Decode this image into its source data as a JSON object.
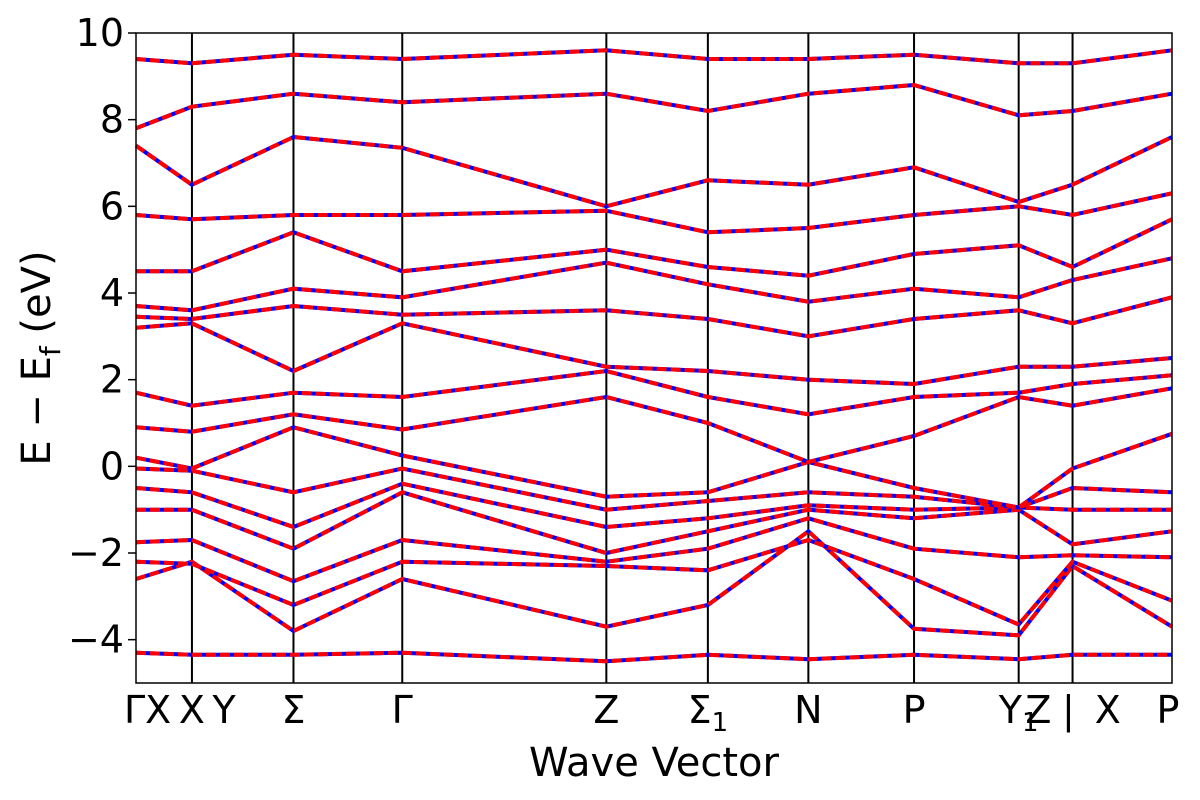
{
  "chart_data": {
    "type": "line",
    "title": "",
    "xlabel": "Wave Vector",
    "ylabel_parts": {
      "main": "E  −  E",
      "sub": "f",
      "unit": " (eV)"
    },
    "ylim": [
      -5,
      10
    ],
    "yticks": [
      {
        "value": -4,
        "label": "−4"
      },
      {
        "value": -2,
        "label": "−2"
      },
      {
        "value": 0,
        "label": "0"
      },
      {
        "value": 2,
        "label": "2"
      },
      {
        "value": 4,
        "label": "4"
      },
      {
        "value": 6,
        "label": "6"
      },
      {
        "value": 8,
        "label": "8"
      },
      {
        "value": 10,
        "label": "10"
      }
    ],
    "xlim": [
      0,
      1
    ],
    "high_symmetry_points": [
      {
        "x": 0.0,
        "label": "ΓX"
      },
      {
        "x": 0.054,
        "label": "X"
      },
      {
        "x": 0.085,
        "label": "Y"
      },
      {
        "x": 0.152,
        "label": "Σ"
      },
      {
        "x": 0.257,
        "label": "Γ"
      },
      {
        "x": 0.454,
        "label": "Z"
      },
      {
        "x": 0.552,
        "label": "Σ",
        "subscript": "1"
      },
      {
        "x": 0.649,
        "label": "N"
      },
      {
        "x": 0.751,
        "label": "P"
      },
      {
        "x": 0.852,
        "label": "Y",
        "subscript": "1"
      },
      {
        "x": 0.871,
        "label": "Z"
      },
      {
        "x": 0.9,
        "label": "|"
      },
      {
        "x": 0.938,
        "label": "X"
      },
      {
        "x": 1.0,
        "label": "P"
      }
    ],
    "segment_boundaries": [
      0.054,
      0.152,
      0.257,
      0.454,
      0.552,
      0.649,
      0.751,
      0.852,
      0.904
    ],
    "colors": {
      "dft": "#0000ff",
      "wannier": "#ff0000",
      "axes": "#000000"
    },
    "series": [
      {
        "name": "",
        "color": "#0000ff",
        "bands": [
          {
            "x": [
              0,
              0.054,
              0.152,
              0.257,
              0.454,
              0.552,
              0.649,
              0.751,
              0.852,
              0.904,
              1.0
            ],
            "y": [
              -4.3,
              -4.35,
              -4.35,
              -4.3,
              -4.5,
              -4.35,
              -4.45,
              -4.35,
              -4.45,
              -4.35,
              -4.35
            ]
          },
          {
            "x": [
              0,
              0.054,
              0.152,
              0.257,
              0.454,
              0.552,
              0.649,
              0.751,
              0.852,
              0.904,
              1.0
            ],
            "y": [
              -2.6,
              -2.2,
              -3.8,
              -2.6,
              -3.7,
              -3.2,
              -1.5,
              -3.75,
              -3.9,
              -2.3,
              -3.7
            ]
          },
          {
            "x": [
              0,
              0.054,
              0.152,
              0.257,
              0.454,
              0.552,
              0.649,
              0.751,
              0.852,
              0.904,
              1.0
            ],
            "y": [
              -2.2,
              -2.25,
              -3.2,
              -2.2,
              -2.3,
              -2.4,
              -1.7,
              -2.6,
              -3.65,
              -2.2,
              -3.1
            ]
          },
          {
            "x": [
              0,
              0.054,
              0.152,
              0.257,
              0.454,
              0.552,
              0.649,
              0.751,
              0.852,
              0.904,
              1.0
            ],
            "y": [
              -1.75,
              -1.7,
              -2.65,
              -1.7,
              -2.2,
              -1.9,
              -1.2,
              -1.9,
              -2.1,
              -2.05,
              -2.1
            ]
          },
          {
            "x": [
              0,
              0.054,
              0.152,
              0.257,
              0.454,
              0.552,
              0.649,
              0.751,
              0.852,
              0.904,
              1.0
            ],
            "y": [
              -1.0,
              -1.0,
              -1.9,
              -0.6,
              -2.0,
              -1.5,
              -1.0,
              -1.2,
              -1.0,
              -1.8,
              -1.5
            ]
          },
          {
            "x": [
              0,
              0.054,
              0.152,
              0.257,
              0.454,
              0.552,
              0.649,
              0.751,
              0.852,
              0.904,
              1.0
            ],
            "y": [
              -0.5,
              -0.6,
              -1.4,
              -0.4,
              -1.4,
              -1.2,
              -0.9,
              -1.0,
              -0.95,
              -1.0,
              -1.0
            ]
          },
          {
            "x": [
              0,
              0.054,
              0.152,
              0.257,
              0.454,
              0.552,
              0.649,
              0.751,
              0.852,
              0.904,
              1.0
            ],
            "y": [
              -0.05,
              -0.1,
              -0.6,
              -0.05,
              -1.0,
              -0.8,
              -0.6,
              -0.7,
              -0.95,
              -0.5,
              -0.6
            ]
          },
          {
            "x": [
              0,
              0.054,
              0.152,
              0.257,
              0.454,
              0.552,
              0.649,
              0.751,
              0.852,
              0.904,
              1.0
            ],
            "y": [
              0.2,
              -0.05,
              0.9,
              0.25,
              -0.7,
              -0.6,
              0.1,
              -0.5,
              -0.95,
              -0.05,
              0.75
            ]
          },
          {
            "x": [
              0,
              0.054,
              0.152,
              0.257,
              0.454,
              0.552,
              0.649,
              0.751,
              0.852,
              0.904,
              1.0
            ],
            "y": [
              0.9,
              0.8,
              1.2,
              0.85,
              1.6,
              1.0,
              0.1,
              0.7,
              1.6,
              1.4,
              1.8
            ]
          },
          {
            "x": [
              0,
              0.054,
              0.152,
              0.257,
              0.454,
              0.552,
              0.649,
              0.751,
              0.852,
              0.904,
              1.0
            ],
            "y": [
              1.7,
              1.4,
              1.7,
              1.6,
              2.2,
              1.6,
              1.2,
              1.6,
              1.7,
              1.9,
              2.1
            ]
          },
          {
            "x": [
              0,
              0.054,
              0.152,
              0.257,
              0.454,
              0.552,
              0.649,
              0.751,
              0.852,
              0.904,
              1.0
            ],
            "y": [
              3.2,
              3.3,
              2.2,
              3.3,
              2.3,
              2.2,
              2.0,
              1.9,
              2.3,
              2.3,
              2.5
            ]
          },
          {
            "x": [
              0,
              0.054,
              0.152,
              0.257,
              0.454,
              0.552,
              0.649,
              0.751,
              0.852,
              0.904,
              1.0
            ],
            "y": [
              3.45,
              3.4,
              3.7,
              3.5,
              3.6,
              3.4,
              3.0,
              3.4,
              3.6,
              3.3,
              3.9
            ]
          },
          {
            "x": [
              0,
              0.054,
              0.152,
              0.257,
              0.454,
              0.552,
              0.649,
              0.751,
              0.852,
              0.904,
              1.0
            ],
            "y": [
              3.7,
              3.6,
              4.1,
              3.9,
              4.7,
              4.2,
              3.8,
              4.1,
              3.9,
              4.3,
              4.8
            ]
          },
          {
            "x": [
              0,
              0.054,
              0.152,
              0.257,
              0.454,
              0.552,
              0.649,
              0.751,
              0.852,
              0.904,
              1.0
            ],
            "y": [
              4.5,
              4.5,
              5.4,
              4.5,
              5.0,
              4.6,
              4.4,
              4.9,
              5.1,
              4.6,
              5.7
            ]
          },
          {
            "x": [
              0,
              0.054,
              0.152,
              0.257,
              0.454,
              0.552,
              0.649,
              0.751,
              0.852,
              0.904,
              1.0
            ],
            "y": [
              5.8,
              5.7,
              5.8,
              5.8,
              5.9,
              5.4,
              5.5,
              5.8,
              6.0,
              5.8,
              6.3
            ]
          },
          {
            "x": [
              0,
              0.054,
              0.152,
              0.257,
              0.454,
              0.552,
              0.649,
              0.751,
              0.852,
              0.904,
              1.0
            ],
            "y": [
              7.4,
              6.5,
              7.6,
              7.35,
              6.0,
              6.6,
              6.5,
              6.9,
              6.1,
              6.5,
              7.6
            ]
          },
          {
            "x": [
              0,
              0.054,
              0.152,
              0.257,
              0.454,
              0.552,
              0.649,
              0.751,
              0.852,
              0.904,
              1.0
            ],
            "y": [
              7.8,
              8.3,
              8.6,
              8.4,
              8.6,
              8.2,
              8.6,
              8.8,
              8.1,
              8.2,
              8.6
            ]
          },
          {
            "x": [
              0,
              0.054,
              0.152,
              0.257,
              0.454,
              0.552,
              0.649,
              0.751,
              0.852,
              0.904,
              1.0
            ],
            "y": [
              9.4,
              9.3,
              9.5,
              9.4,
              9.6,
              9.4,
              9.4,
              9.5,
              9.3,
              9.3,
              9.6
            ]
          }
        ]
      },
      {
        "name": "",
        "color": "#ff0000",
        "bands": "same as first series"
      }
    ]
  }
}
